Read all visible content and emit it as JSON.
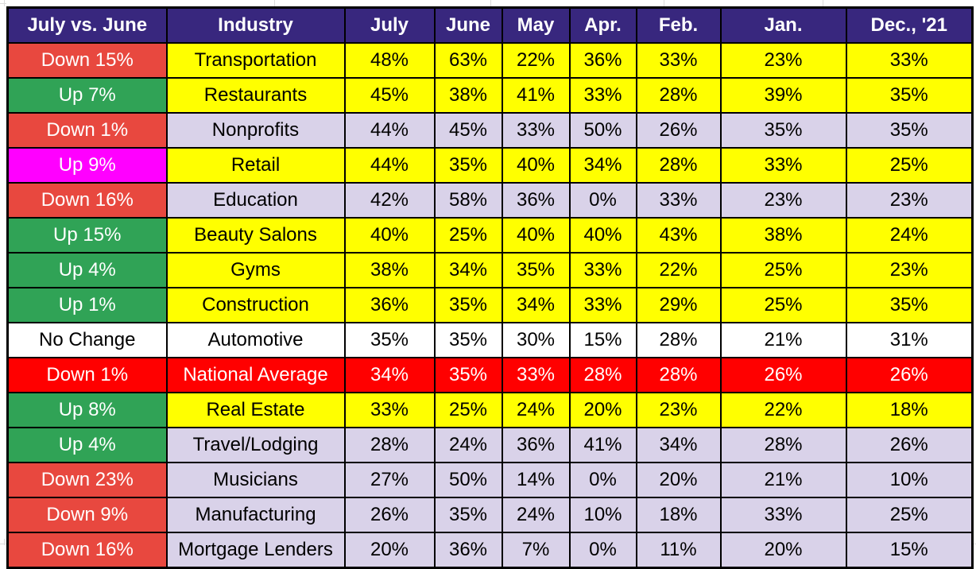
{
  "page": {
    "background": "#FFFFFF"
  },
  "colors": {
    "header_bg": "#38277E",
    "header_text": "#FFFFFF",
    "border": "#000000",
    "down_red": "#E8483F",
    "up_green": "#30A356",
    "magenta": "#FF00FF",
    "bright_red": "#FF0000",
    "yellow": "#FFFF00",
    "lavender": "#D9D2E9",
    "white": "#FFFFFF",
    "black_text": "#000000",
    "white_text": "#FFFFFF",
    "gridline": "#DCDCDC"
  },
  "chart_data": {
    "type": "table",
    "title": "",
    "columns": [
      "July vs. June",
      "Industry",
      "July",
      "June",
      "May",
      "Apr.",
      "Feb.",
      "Jan.",
      "Dec., '21"
    ],
    "rows": [
      {
        "change": "Down 15%",
        "industry": "Transportation",
        "values": [
          "48%",
          "63%",
          "22%",
          "36%",
          "33%",
          "23%",
          "33%"
        ],
        "change_style": "down",
        "row_style": "yellow"
      },
      {
        "change": "Up 7%",
        "industry": "Restaurants",
        "values": [
          "45%",
          "38%",
          "41%",
          "33%",
          "28%",
          "39%",
          "35%"
        ],
        "change_style": "up",
        "row_style": "yellow"
      },
      {
        "change": "Down 1%",
        "industry": "Nonprofits",
        "values": [
          "44%",
          "45%",
          "33%",
          "50%",
          "26%",
          "35%",
          "35%"
        ],
        "change_style": "down",
        "row_style": "lavender"
      },
      {
        "change": "Up 9%",
        "industry": "Retail",
        "values": [
          "44%",
          "35%",
          "40%",
          "34%",
          "28%",
          "33%",
          "25%"
        ],
        "change_style": "magenta",
        "row_style": "yellow"
      },
      {
        "change": "Down 16%",
        "industry": "Education",
        "values": [
          "42%",
          "58%",
          "36%",
          "0%",
          "33%",
          "23%",
          "23%"
        ],
        "change_style": "down",
        "row_style": "lavender"
      },
      {
        "change": "Up 15%",
        "industry": "Beauty Salons",
        "values": [
          "40%",
          "25%",
          "40%",
          "40%",
          "43%",
          "38%",
          "24%"
        ],
        "change_style": "up",
        "row_style": "yellow"
      },
      {
        "change": "Up 4%",
        "industry": "Gyms",
        "values": [
          "38%",
          "34%",
          "35%",
          "33%",
          "22%",
          "25%",
          "23%"
        ],
        "change_style": "up",
        "row_style": "yellow"
      },
      {
        "change": "Up 1%",
        "industry": "Construction",
        "values": [
          "36%",
          "35%",
          "34%",
          "33%",
          "29%",
          "25%",
          "35%"
        ],
        "change_style": "up",
        "row_style": "yellow"
      },
      {
        "change": "No Change",
        "industry": "Automotive",
        "values": [
          "35%",
          "35%",
          "30%",
          "15%",
          "28%",
          "21%",
          "31%"
        ],
        "change_style": "plain",
        "row_style": "white"
      },
      {
        "change": "Down 1%",
        "industry": "National Average",
        "values": [
          "34%",
          "35%",
          "33%",
          "28%",
          "28%",
          "26%",
          "26%"
        ],
        "change_style": "bright-red",
        "row_style": "bright-red"
      },
      {
        "change": "Up 8%",
        "industry": "Real Estate",
        "values": [
          "33%",
          "25%",
          "24%",
          "20%",
          "23%",
          "22%",
          "18%"
        ],
        "change_style": "up",
        "row_style": "yellow"
      },
      {
        "change": "Up 4%",
        "industry": "Travel/Lodging",
        "values": [
          "28%",
          "24%",
          "36%",
          "41%",
          "34%",
          "28%",
          "26%"
        ],
        "change_style": "up",
        "row_style": "lavender"
      },
      {
        "change": "Down 23%",
        "industry": "Musicians",
        "values": [
          "27%",
          "50%",
          "14%",
          "0%",
          "20%",
          "21%",
          "10%"
        ],
        "change_style": "down",
        "row_style": "lavender"
      },
      {
        "change": "Down 9%",
        "industry": "Manufacturing",
        "values": [
          "26%",
          "35%",
          "24%",
          "10%",
          "18%",
          "33%",
          "25%"
        ],
        "change_style": "down",
        "row_style": "lavender"
      },
      {
        "change": "Down 16%",
        "industry": "Mortgage Lenders",
        "values": [
          "20%",
          "36%",
          "7%",
          "0%",
          "11%",
          "20%",
          "15%"
        ],
        "change_style": "down",
        "row_style": "lavender"
      }
    ]
  }
}
